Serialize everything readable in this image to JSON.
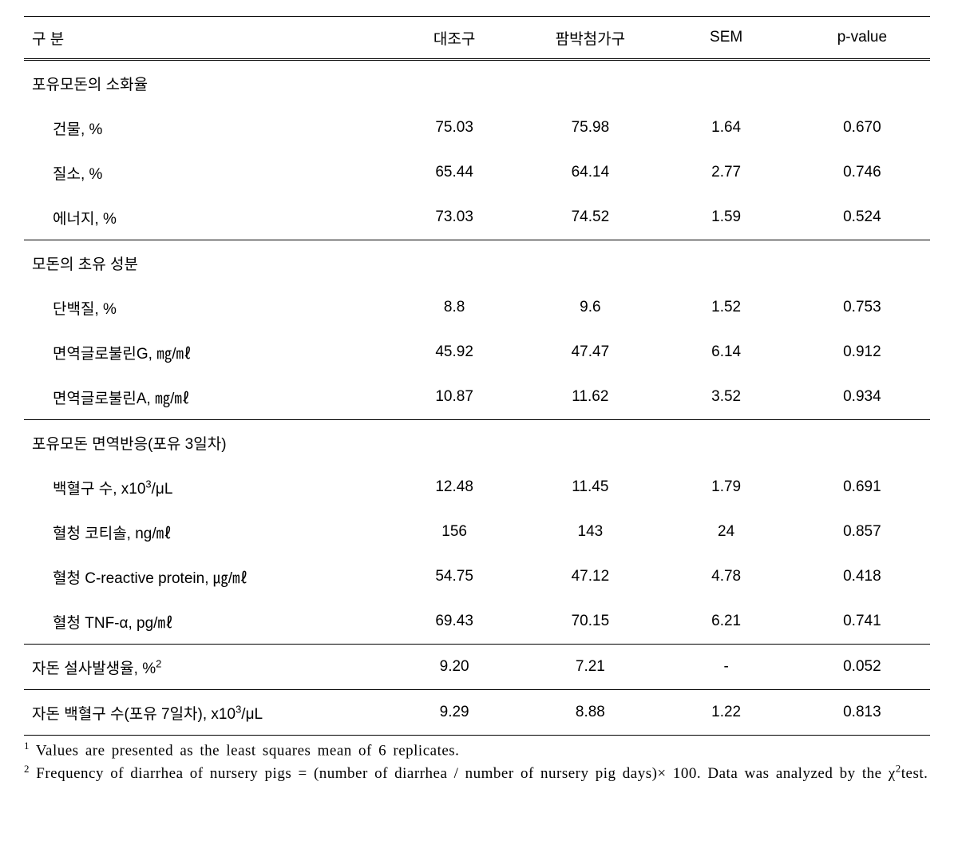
{
  "header": {
    "col_label": "구      분",
    "col_a": "대조구",
    "col_b": "팜박첨가구",
    "col_c": "SEM",
    "col_d": "p-value"
  },
  "sections": [
    {
      "title": "포유모돈의 소화율",
      "rows": [
        {
          "label": "건물, %",
          "a": "75.03",
          "b": "75.98",
          "c": "1.64",
          "d": "0.670"
        },
        {
          "label": "질소, %",
          "a": "65.44",
          "b": "64.14",
          "c": "2.77",
          "d": "0.746"
        },
        {
          "label": "에너지, %",
          "a": "73.03",
          "b": "74.52",
          "c": "1.59",
          "d": "0.524"
        }
      ]
    },
    {
      "title": "모돈의 초유 성분",
      "rows": [
        {
          "label": "단백질, %",
          "a": "8.8",
          "b": "9.6",
          "c": "1.52",
          "d": "0.753"
        },
        {
          "label": "면역글로불린G, ㎎/㎖",
          "a": "45.92",
          "b": "47.47",
          "c": "6.14",
          "d": "0.912"
        },
        {
          "label": "면역글로불린A, ㎎/㎖",
          "a": "10.87",
          "b": "11.62",
          "c": "3.52",
          "d": "0.934"
        }
      ]
    },
    {
      "title": "포유모돈 면역반응(포유 3일차)",
      "rows": [
        {
          "label_html": "백혈구 수, x10<sup class='ss'>3</sup>/μL",
          "a": "12.48",
          "b": "11.45",
          "c": "1.79",
          "d": "0.691"
        },
        {
          "label": "혈청 코티솔, ng/㎖",
          "a": "156",
          "b": "143",
          "c": "24",
          "d": "0.857"
        },
        {
          "label": "혈청 C-reactive protein, ㎍/㎖",
          "a": "54.75",
          "b": "47.12",
          "c": "4.78",
          "d": "0.418"
        },
        {
          "label": "혈청 TNF-α, pg/㎖",
          "a": "69.43",
          "b": "70.15",
          "c": "6.21",
          "d": "0.741"
        }
      ]
    }
  ],
  "single_rows": [
    {
      "label_html": "자돈 설사발생율, %<sup class='ss'>2</sup>",
      "a": "9.20",
      "b": "7.21",
      "c": "-",
      "d": "0.052"
    },
    {
      "label_html": "자돈 백혈구 수(포유 7일차), x10<sup class='ss'>3</sup>/μL",
      "a": "9.29",
      "b": "8.88",
      "c": "1.22",
      "d": "0.813"
    }
  ],
  "footnotes": [
    {
      "num": "1",
      "text": "Values are presented as the least squares mean of 6 replicates."
    },
    {
      "num": "2",
      "text_html": "Frequency of diarrhea of nursery pigs = (number of diarrhea / number of nursery pig days)× 100. Data was analyzed by the χ<sup class='ss'>2</sup>test."
    }
  ],
  "colors": {
    "text": "#000000",
    "background": "#ffffff",
    "border": "#000000"
  }
}
